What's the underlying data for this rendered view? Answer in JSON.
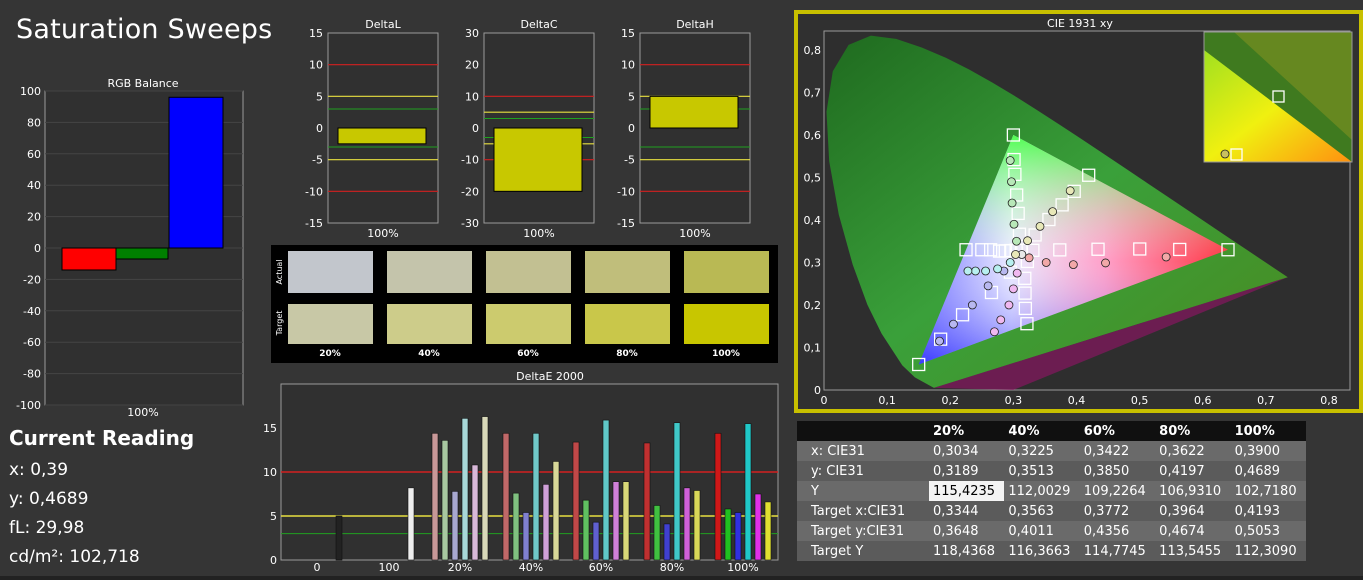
{
  "title": "Saturation Sweeps",
  "current_reading": {
    "heading": "Current Reading",
    "x": "x: 0,39",
    "y": "y: 0,4689",
    "fl": "fL: 29,98",
    "cdm2": "cd/m²: 102,718"
  },
  "colors": {
    "red": "#ff0000",
    "green": "#008000",
    "blue": "#0000ff",
    "target_yellow": "#c8c800",
    "gamut_border": "#c8c000",
    "red_line": "#d22020",
    "yellow_line": "#e8e040",
    "green_line": "#20a020"
  },
  "swatches": {
    "row_labels": [
      "Actual",
      "Target"
    ],
    "labels": [
      "20%",
      "40%",
      "60%",
      "80%",
      "100%"
    ],
    "actual": [
      "#c2c6cc",
      "#c4c4ab",
      "#c2c092",
      "#c0be7b",
      "#b9b954"
    ],
    "target": [
      "#c8c8a6",
      "#cdcc8a",
      "#cccb6e",
      "#c9c74a",
      "#c8c600"
    ]
  },
  "table": {
    "columns": [
      "",
      "20%",
      "40%",
      "60%",
      "80%",
      "100%"
    ],
    "rows": [
      {
        "label": "x: CIE31",
        "values": [
          "0,3034",
          "0,3225",
          "0,3422",
          "0,3622",
          "0,3900"
        ]
      },
      {
        "label": "y: CIE31",
        "values": [
          "0,3189",
          "0,3513",
          "0,3850",
          "0,4197",
          "0,4689"
        ]
      },
      {
        "label": "Y",
        "values": [
          "115,4235",
          "112,0029",
          "109,2264",
          "106,9310",
          "102,7180"
        ]
      },
      {
        "label": "Target x:CIE31",
        "values": [
          "0,3344",
          "0,3563",
          "0,3772",
          "0,3964",
          "0,4193"
        ]
      },
      {
        "label": "Target y:CIE31",
        "values": [
          "0,3648",
          "0,4011",
          "0,4356",
          "0,4674",
          "0,5053"
        ]
      },
      {
        "label": "Target Y",
        "values": [
          "118,4368",
          "116,3663",
          "114,7745",
          "113,5455",
          "112,3090"
        ]
      }
    ]
  },
  "chart_data": [
    {
      "type": "bar",
      "title": "RGB Balance",
      "categories": [
        "100%"
      ],
      "series": [
        {
          "color": "#ff0000",
          "values": [
            -14
          ]
        },
        {
          "color": "#008000",
          "values": [
            -7
          ]
        },
        {
          "color": "#0000ff",
          "values": [
            96
          ]
        }
      ],
      "ylim": [
        -100,
        100
      ],
      "yticks": [
        100,
        80,
        60,
        40,
        20,
        0,
        -20,
        -40,
        -60,
        -80,
        -100
      ]
    },
    {
      "type": "bar",
      "title": "DeltaL",
      "categories": [
        "100%"
      ],
      "values": [
        -2.5
      ],
      "ylim": [
        -15,
        15
      ],
      "yticks": [
        15,
        10,
        5,
        0,
        -5,
        -10,
        -15
      ],
      "red_lines": [
        10,
        -10
      ],
      "yellow_lines": [
        5,
        -5
      ],
      "green_lines": [
        3,
        -3
      ]
    },
    {
      "type": "bar",
      "title": "DeltaC",
      "categories": [
        "100%"
      ],
      "values": [
        -20
      ],
      "ylim": [
        -30,
        30
      ],
      "yticks": [
        30,
        20,
        10,
        0,
        -10,
        -20,
        -30
      ],
      "red_lines": [
        10,
        -10
      ],
      "yellow_lines": [
        5,
        -5
      ],
      "green_lines": [
        3,
        -3
      ]
    },
    {
      "type": "bar",
      "title": "DeltaH",
      "categories": [
        "100%"
      ],
      "values": [
        5
      ],
      "ylim": [
        -15,
        15
      ],
      "yticks": [
        15,
        10,
        5,
        0,
        -5,
        -10,
        -15
      ],
      "red_lines": [
        10,
        -10
      ],
      "yellow_lines": [
        5,
        -5
      ],
      "green_lines": [
        3,
        -3
      ]
    },
    {
      "type": "bar",
      "title": "DeltaE 2000",
      "categories": [
        "0",
        "100",
        "20%",
        "40%",
        "60%",
        "80%",
        "100%"
      ],
      "ylim": [
        0,
        20
      ],
      "yticks": [
        0,
        5,
        10,
        15
      ],
      "red_line": 10,
      "yellow_line": 5,
      "green_line": 3,
      "groups": [
        {
          "category": "0",
          "bars": [
            {
              "color": "#222222",
              "value": 5
            }
          ]
        },
        {
          "category": "100",
          "bars": [
            {
              "color": "#eeeeee",
              "value": 8.2
            }
          ]
        },
        {
          "category": "20%",
          "bars": [
            {
              "color": "#c89898",
              "value": 14.4
            },
            {
              "color": "#a8c8a0",
              "value": 13.6
            },
            {
              "color": "#a8a8d0",
              "value": 7.8
            },
            {
              "color": "#a8d8d8",
              "value": 16.1
            },
            {
              "color": "#d8b8d8",
              "value": 10.8
            },
            {
              "color": "#d8d8b8",
              "value": 16.3
            }
          ]
        },
        {
          "category": "40%",
          "bars": [
            {
              "color": "#c06868",
              "value": 14.4
            },
            {
              "color": "#80c080",
              "value": 7.6
            },
            {
              "color": "#8080d0",
              "value": 5.4
            },
            {
              "color": "#70c8c8",
              "value": 14.4
            },
            {
              "color": "#d0a0d8",
              "value": 8.6
            },
            {
              "color": "#d8d898",
              "value": 11.2
            }
          ]
        },
        {
          "category": "60%",
          "bars": [
            {
              "color": "#c04848",
              "value": 13.4
            },
            {
              "color": "#60c060",
              "value": 6.8
            },
            {
              "color": "#6060d0",
              "value": 4.3
            },
            {
              "color": "#60c8c8",
              "value": 15.9
            },
            {
              "color": "#d080d8",
              "value": 8.9
            },
            {
              "color": "#d8d878",
              "value": 8.9
            }
          ]
        },
        {
          "category": "80%",
          "bars": [
            {
              "color": "#c03030",
              "value": 13.3
            },
            {
              "color": "#40c040",
              "value": 6.2
            },
            {
              "color": "#4040d0",
              "value": 4.1
            },
            {
              "color": "#40c8c8",
              "value": 15.6
            },
            {
              "color": "#d060d8",
              "value": 8.2
            },
            {
              "color": "#d8d858",
              "value": 7.9
            }
          ]
        },
        {
          "category": "100%",
          "bars": [
            {
              "color": "#d01818",
              "value": 14.4
            },
            {
              "color": "#20c020",
              "value": 5.8
            },
            {
              "color": "#3030e0",
              "value": 5.4
            },
            {
              "color": "#20c8c8",
              "value": 15.5
            },
            {
              "color": "#e030e8",
              "value": 7.5
            },
            {
              "color": "#e0e030",
              "value": 6.6
            }
          ]
        }
      ]
    },
    {
      "type": "scatter",
      "title": "CIE 1931 xy",
      "xlim": [
        0,
        0.8
      ],
      "ylim": [
        0,
        0.85
      ],
      "xticks": [
        "0",
        "0,1",
        "0,2",
        "0,3",
        "0,4",
        "0,5",
        "0,6",
        "0,7",
        "0,8"
      ],
      "yticks": [
        "0",
        "0,1",
        "0,2",
        "0,3",
        "0,4",
        "0,5",
        "0,6",
        "0,7",
        "0,8"
      ],
      "gamut": {
        "red": [
          0.64,
          0.33
        ],
        "green": [
          0.3,
          0.6
        ],
        "blue": [
          0.15,
          0.06
        ],
        "white": [
          0.3127,
          0.329
        ]
      },
      "targets": [
        [
          0.3127,
          0.329
        ],
        [
          0.3044,
          0.3287
        ],
        [
          0.2959,
          0.3281
        ],
        [
          0.2872,
          0.3275
        ],
        [
          0.2782,
          0.3268
        ],
        [
          0.264,
          0.33
        ],
        [
          0.25,
          0.33
        ],
        [
          0.225,
          0.33
        ],
        [
          0.3309,
          0.3286
        ],
        [
          0.3735,
          0.3297
        ],
        [
          0.4341,
          0.3312
        ],
        [
          0.5002,
          0.3318
        ],
        [
          0.5635,
          0.3307
        ],
        [
          0.64,
          0.33
        ],
        [
          0.3096,
          0.3665
        ],
        [
          0.3076,
          0.4155
        ],
        [
          0.3052,
          0.4588
        ],
        [
          0.3024,
          0.5074
        ],
        [
          0.3011,
          0.5422
        ],
        [
          0.3,
          0.6
        ],
        [
          0.2953,
          0.2773
        ],
        [
          0.2653,
          0.2294
        ],
        [
          0.2195,
          0.177
        ],
        [
          0.1848,
          0.1196
        ],
        [
          0.15,
          0.06
        ],
        [
          0.3222,
          0.3025
        ],
        [
          0.3181,
          0.2628
        ],
        [
          0.3185,
          0.2279
        ],
        [
          0.319,
          0.192
        ],
        [
          0.3215,
          0.156
        ],
        [
          0.3344,
          0.3648
        ],
        [
          0.3563,
          0.4011
        ],
        [
          0.3772,
          0.4356
        ],
        [
          0.3964,
          0.4674
        ],
        [
          0.4193,
          0.5053
        ]
      ],
      "measured": [
        {
          "c": "#e8e8e8",
          "p": [
            [
              0.3134,
              0.3189
            ]
          ]
        },
        {
          "c": "#f2a8a8",
          "p": [
            [
              0.325,
              0.311
            ],
            [
              0.352,
              0.3
            ],
            [
              0.395,
              0.295
            ],
            [
              0.446,
              0.299
            ],
            [
              0.542,
              0.313
            ]
          ]
        },
        {
          "c": "#b8e8b8",
          "p": [
            [
              0.305,
              0.35
            ],
            [
              0.301,
              0.39
            ],
            [
              0.298,
              0.44
            ],
            [
              0.297,
              0.49
            ],
            [
              0.295,
              0.54
            ]
          ]
        },
        {
          "c": "#b8b8f0",
          "p": [
            [
              0.285,
              0.28
            ],
            [
              0.26,
              0.245
            ],
            [
              0.235,
              0.2
            ],
            [
              0.205,
              0.155
            ],
            [
              0.183,
              0.115
            ]
          ]
        },
        {
          "c": "#b8f0f0",
          "p": [
            [
              0.295,
              0.3
            ],
            [
              0.275,
              0.285
            ],
            [
              0.256,
              0.28
            ],
            [
              0.24,
              0.28
            ],
            [
              0.228,
              0.28
            ]
          ]
        },
        {
          "c": "#f0b8f0",
          "p": [
            [
              0.306,
              0.275
            ],
            [
              0.3,
              0.238
            ],
            [
              0.293,
              0.2
            ],
            [
              0.28,
              0.165
            ],
            [
              0.27,
              0.137
            ]
          ]
        },
        {
          "c": "#e8e8b8",
          "p": [
            [
              0.3034,
              0.3189
            ],
            [
              0.3225,
              0.3513
            ],
            [
              0.3422,
              0.385
            ],
            [
              0.3622,
              0.4197
            ],
            [
              0.39,
              0.4689
            ]
          ]
        }
      ]
    }
  ]
}
